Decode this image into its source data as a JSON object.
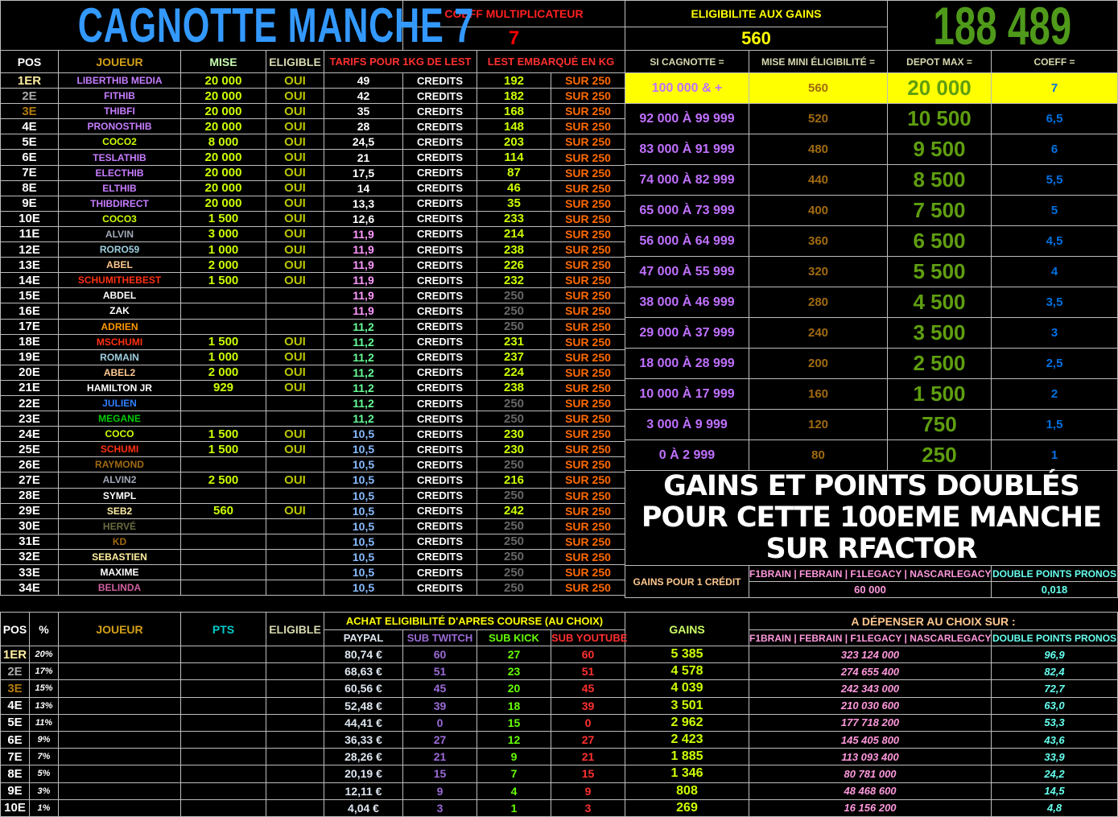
{
  "title": "CAGNOTTE MANCHE 7",
  "coeff": {
    "label": "COEFF MULTIPLICATEUR",
    "value": "7"
  },
  "eligibility": {
    "label": "ELIGIBILITE AUX GAINS",
    "value": "560"
  },
  "jackpot": "188 489",
  "colors": {
    "title": "#3399ff",
    "jackpot": "#4f9a1a",
    "highlight_row": "#ffff00",
    "border": "#bdbdbd",
    "background": "#000000"
  },
  "main_headers": [
    "POS",
    "JOUEUR",
    "MISE",
    "ELIGIBLE",
    "TARIFS POUR 1KG DE LEST",
    "LEST EMBARQUÉ EN KG"
  ],
  "credits_label": "CREDITS",
  "sur_label": "SUR 250",
  "players": [
    {
      "pos": "1ER",
      "pos_color": "#fff0a0",
      "name": "LIBERTHIB MEDIA",
      "color": "#c77dff",
      "mise": "20 000",
      "elig": "OUI",
      "tarif": "49",
      "tarif_color": "#ffffff",
      "lest": "192",
      "lest_color": "#ccff00"
    },
    {
      "pos": "2E",
      "pos_color": "#aaaaaa",
      "name": "FITHIB",
      "color": "#c77dff",
      "mise": "20 000",
      "elig": "OUI",
      "tarif": "42",
      "tarif_color": "#ffffff",
      "lest": "182",
      "lest_color": "#ccff00"
    },
    {
      "pos": "3E",
      "pos_color": "#b07a10",
      "name": "THIBFI",
      "color": "#c77dff",
      "mise": "20 000",
      "elig": "OUI",
      "tarif": "35",
      "tarif_color": "#ffffff",
      "lest": "168",
      "lest_color": "#ccff00"
    },
    {
      "pos": "4E",
      "pos_color": "#ffffff",
      "name": "PRONOSTHIB",
      "color": "#c77dff",
      "mise": "20 000",
      "elig": "OUI",
      "tarif": "28",
      "tarif_color": "#ffffff",
      "lest": "148",
      "lest_color": "#ccff00"
    },
    {
      "pos": "5E",
      "pos_color": "#ffffff",
      "name": "COCO2",
      "color": "#ccff00",
      "mise": "8 000",
      "elig": "OUI",
      "tarif": "24,5",
      "tarif_color": "#ffffff",
      "lest": "203",
      "lest_color": "#ccff00"
    },
    {
      "pos": "6E",
      "pos_color": "#ffffff",
      "name": "TESLATHIB",
      "color": "#c77dff",
      "mise": "20 000",
      "elig": "OUI",
      "tarif": "21",
      "tarif_color": "#ffffff",
      "lest": "114",
      "lest_color": "#ccff00"
    },
    {
      "pos": "7E",
      "pos_color": "#ffffff",
      "name": "ELECTHIB",
      "color": "#c77dff",
      "mise": "20 000",
      "elig": "OUI",
      "tarif": "17,5",
      "tarif_color": "#ffffff",
      "lest": "87",
      "lest_color": "#ccff00"
    },
    {
      "pos": "8E",
      "pos_color": "#ffffff",
      "name": "ELTHIB",
      "color": "#c77dff",
      "mise": "20 000",
      "elig": "OUI",
      "tarif": "14",
      "tarif_color": "#ffffff",
      "lest": "46",
      "lest_color": "#ccff00"
    },
    {
      "pos": "9E",
      "pos_color": "#ffffff",
      "name": "THIBDIRECT",
      "color": "#c77dff",
      "mise": "20 000",
      "elig": "OUI",
      "tarif": "13,3",
      "tarif_color": "#ffffff",
      "lest": "35",
      "lest_color": "#ccff00"
    },
    {
      "pos": "10E",
      "pos_color": "#ffffff",
      "name": "COCO3",
      "color": "#ccff00",
      "mise": "1 500",
      "elig": "OUI",
      "tarif": "12,6",
      "tarif_color": "#ffffff",
      "lest": "233",
      "lest_color": "#ccff00"
    },
    {
      "pos": "11E",
      "pos_color": "#ffffff",
      "name": "ALVIN",
      "color": "#a0a8b8",
      "mise": "3 000",
      "elig": "OUI",
      "tarif": "11,9",
      "tarif_color": "#ff99ff",
      "lest": "214",
      "lest_color": "#ccff00"
    },
    {
      "pos": "12E",
      "pos_color": "#ffffff",
      "name": "RORO59",
      "color": "#9ecfe0",
      "mise": "1 000",
      "elig": "OUI",
      "tarif": "11,9",
      "tarif_color": "#ff99ff",
      "lest": "238",
      "lest_color": "#ccff00"
    },
    {
      "pos": "13E",
      "pos_color": "#ffffff",
      "name": "ABEL",
      "color": "#ffc890",
      "mise": "2 000",
      "elig": "OUI",
      "tarif": "11,9",
      "tarif_color": "#ff99ff",
      "lest": "226",
      "lest_color": "#ccff00"
    },
    {
      "pos": "14E",
      "pos_color": "#ffffff",
      "name": "SCHUMITHEBEST",
      "color": "#ff3010",
      "mise": "1 500",
      "elig": "OUI",
      "tarif": "11,9",
      "tarif_color": "#ff99ff",
      "lest": "232",
      "lest_color": "#ccff00"
    },
    {
      "pos": "15E",
      "pos_color": "#ffffff",
      "name": "ABDEL",
      "color": "#ffffff",
      "mise": "",
      "elig": "",
      "tarif": "11,9",
      "tarif_color": "#ff99ff",
      "lest": "250",
      "lest_color": "#666666"
    },
    {
      "pos": "16E",
      "pos_color": "#ffffff",
      "name": "ZAK",
      "color": "#ffffff",
      "mise": "",
      "elig": "",
      "tarif": "11,9",
      "tarif_color": "#ff99ff",
      "lest": "250",
      "lest_color": "#666666"
    },
    {
      "pos": "17E",
      "pos_color": "#ffffff",
      "name": "ADRIEN",
      "color": "#ff9900",
      "mise": "",
      "elig": "",
      "tarif": "11,2",
      "tarif_color": "#66ff99",
      "lest": "250",
      "lest_color": "#666666"
    },
    {
      "pos": "18E",
      "pos_color": "#ffffff",
      "name": "MSCHUMI",
      "color": "#ff3010",
      "mise": "1 500",
      "elig": "OUI",
      "tarif": "11,2",
      "tarif_color": "#66ff99",
      "lest": "231",
      "lest_color": "#ccff00"
    },
    {
      "pos": "19E",
      "pos_color": "#ffffff",
      "name": "ROMAIN",
      "color": "#9ecfe0",
      "mise": "1 000",
      "elig": "OUI",
      "tarif": "11,2",
      "tarif_color": "#66ff99",
      "lest": "237",
      "lest_color": "#ccff00"
    },
    {
      "pos": "20E",
      "pos_color": "#ffffff",
      "name": "ABEL2",
      "color": "#ffc890",
      "mise": "2 000",
      "elig": "OUI",
      "tarif": "11,2",
      "tarif_color": "#66ff99",
      "lest": "224",
      "lest_color": "#ccff00"
    },
    {
      "pos": "21E",
      "pos_color": "#ffffff",
      "name": "HAMILTON JR",
      "color": "#ffffff",
      "mise": "929",
      "elig": "OUI",
      "tarif": "11,2",
      "tarif_color": "#66ff99",
      "lest": "238",
      "lest_color": "#ccff00"
    },
    {
      "pos": "22E",
      "pos_color": "#ffffff",
      "name": "JULIEN",
      "color": "#3080ff",
      "mise": "",
      "elig": "",
      "tarif": "11,2",
      "tarif_color": "#66ff99",
      "lest": "250",
      "lest_color": "#666666"
    },
    {
      "pos": "23E",
      "pos_color": "#ffffff",
      "name": "MEGANE",
      "color": "#00cc00",
      "mise": "",
      "elig": "",
      "tarif": "11,2",
      "tarif_color": "#66ff99",
      "lest": "250",
      "lest_color": "#666666"
    },
    {
      "pos": "24E",
      "pos_color": "#ffffff",
      "name": "COCO",
      "color": "#ccff00",
      "mise": "1 500",
      "elig": "OUI",
      "tarif": "10,5",
      "tarif_color": "#88bbff",
      "lest": "230",
      "lest_color": "#ccff00"
    },
    {
      "pos": "25E",
      "pos_color": "#ffffff",
      "name": "SCHUMI",
      "color": "#ff3010",
      "mise": "1 500",
      "elig": "OUI",
      "tarif": "10,5",
      "tarif_color": "#88bbff",
      "lest": "230",
      "lest_color": "#ccff00"
    },
    {
      "pos": "26E",
      "pos_color": "#ffffff",
      "name": "RAYMOND",
      "color": "#a06a10",
      "mise": "",
      "elig": "",
      "tarif": "10,5",
      "tarif_color": "#88bbff",
      "lest": "250",
      "lest_color": "#666666"
    },
    {
      "pos": "27E",
      "pos_color": "#ffffff",
      "name": "ALVIN2",
      "color": "#a0a8b8",
      "mise": "2 500",
      "elig": "OUI",
      "tarif": "10,5",
      "tarif_color": "#88bbff",
      "lest": "216",
      "lest_color": "#ccff00"
    },
    {
      "pos": "28E",
      "pos_color": "#ffffff",
      "name": "SYMPL",
      "color": "#ffffff",
      "mise": "",
      "elig": "",
      "tarif": "10,5",
      "tarif_color": "#88bbff",
      "lest": "250",
      "lest_color": "#666666"
    },
    {
      "pos": "29E",
      "pos_color": "#ffffff",
      "name": "SEB2",
      "color": "#fff0a0",
      "mise": "560",
      "elig": "OUI",
      "tarif": "10,5",
      "tarif_color": "#88bbff",
      "lest": "242",
      "lest_color": "#ccff00"
    },
    {
      "pos": "30E",
      "pos_color": "#ffffff",
      "name": "HERVÉ",
      "color": "#6a6a40",
      "mise": "",
      "elig": "",
      "tarif": "10,5",
      "tarif_color": "#88bbff",
      "lest": "250",
      "lest_color": "#666666"
    },
    {
      "pos": "31E",
      "pos_color": "#ffffff",
      "name": "KD",
      "color": "#a06a10",
      "mise": "",
      "elig": "",
      "tarif": "10,5",
      "tarif_color": "#88bbff",
      "lest": "250",
      "lest_color": "#666666"
    },
    {
      "pos": "32E",
      "pos_color": "#ffffff",
      "name": "SEBASTIEN",
      "color": "#fff0a0",
      "mise": "",
      "elig": "",
      "tarif": "10,5",
      "tarif_color": "#88bbff",
      "lest": "250",
      "lest_color": "#666666"
    },
    {
      "pos": "33E",
      "pos_color": "#ffffff",
      "name": "MAXIME",
      "color": "#ffffff",
      "mise": "",
      "elig": "",
      "tarif": "10,5",
      "tarif_color": "#88bbff",
      "lest": "250",
      "lest_color": "#666666"
    },
    {
      "pos": "34E",
      "pos_color": "#ffffff",
      "name": "BELINDA",
      "color": "#d060a0",
      "mise": "",
      "elig": "",
      "tarif": "10,5",
      "tarif_color": "#88bbff",
      "lest": "250",
      "lest_color": "#666666"
    }
  ],
  "scale_headers": [
    "SI CAGNOTTE =",
    "MISE MINI ÉLIGIBILITÉ =",
    "DEPOT MAX =",
    "COEFF ="
  ],
  "scale": [
    {
      "range": "100 000 & +",
      "mini": "560",
      "depot": "20 000",
      "coeff": "7",
      "active": true
    },
    {
      "range": "92 000 À 99 999",
      "mini": "520",
      "depot": "10 500",
      "coeff": "6,5"
    },
    {
      "range": "83 000 À 91 999",
      "mini": "480",
      "depot": "9 500",
      "coeff": "6"
    },
    {
      "range": "74 000 À 82 999",
      "mini": "440",
      "depot": "8 500",
      "coeff": "5,5"
    },
    {
      "range": "65 000 À 73 999",
      "mini": "400",
      "depot": "7 500",
      "coeff": "5"
    },
    {
      "range": "56 000 À 64 999",
      "mini": "360",
      "depot": "6 500",
      "coeff": "4,5"
    },
    {
      "range": "47 000 À 55 999",
      "mini": "320",
      "depot": "5 500",
      "coeff": "4"
    },
    {
      "range": "38 000 À 46 999",
      "mini": "280",
      "depot": "4 500",
      "coeff": "3,5"
    },
    {
      "range": "29 000 À 37 999",
      "mini": "240",
      "depot": "3 500",
      "coeff": "3"
    },
    {
      "range": "18 000 À 28 999",
      "mini": "200",
      "depot": "2 500",
      "coeff": "2,5"
    },
    {
      "range": "10 000 À 17 999",
      "mini": "160",
      "depot": "1 500",
      "coeff": "2"
    },
    {
      "range": "3 000 À 9 999",
      "mini": "120",
      "depot": "750",
      "coeff": "1,5"
    },
    {
      "range": "0 À 2 999",
      "mini": "80",
      "depot": "250",
      "coeff": "1"
    }
  ],
  "banner": [
    "GAINS ET POINTS DOUBLÉS",
    "POUR CETTE 100EME MANCHE",
    "SUR RFACTOR"
  ],
  "credit_gain": {
    "label": "GAINS POUR 1 CRÉDIT",
    "games_label": "F1BRAIN | FEBRAIN | F1LEGACY | NASCARLEGACY",
    "games_value": "60 000",
    "pronos_label": "DOUBLE POINTS PRONOS",
    "pronos_value": "0,018"
  },
  "bottom": {
    "headers": {
      "pos": "POS",
      "pct": "%",
      "joueur": "JOUEUR",
      "pts": "PTS",
      "eligible": "ELIGIBLE",
      "achat": "ACHAT ELIGIBILITÉ D'APRES COURSE (AU CHOIX)",
      "paypal": "PAYPAL",
      "twitch": "SUB TWITCH",
      "kick": "SUB KICK",
      "youtube": "SUB YOUTUBE",
      "gains": "GAINS",
      "depenser": "A DÉPENSER AU CHOIX SUR :",
      "games": "F1BRAIN | FEBRAIN | F1LEGACY | NASCARLEGACY",
      "pronos": "DOUBLE POINTS PRONOS"
    },
    "rows": [
      {
        "pos": "1ER",
        "pos_color": "#fff0a0",
        "pct": "20%",
        "paypal": "80,74 €",
        "twitch": "60",
        "kick": "27",
        "youtube": "60",
        "gains": "5 385",
        "games": "323 124 000",
        "pronos": "96,9"
      },
      {
        "pos": "2E",
        "pos_color": "#aaaaaa",
        "pct": "17%",
        "paypal": "68,63 €",
        "twitch": "51",
        "kick": "23",
        "youtube": "51",
        "gains": "4 578",
        "games": "274 655 400",
        "pronos": "82,4"
      },
      {
        "pos": "3E",
        "pos_color": "#b07a10",
        "pct": "15%",
        "paypal": "60,56 €",
        "twitch": "45",
        "kick": "20",
        "youtube": "45",
        "gains": "4 039",
        "games": "242 343 000",
        "pronos": "72,7"
      },
      {
        "pos": "4E",
        "pos_color": "#ffffff",
        "pct": "13%",
        "paypal": "52,48 €",
        "twitch": "39",
        "kick": "18",
        "youtube": "39",
        "gains": "3 501",
        "games": "210 030 600",
        "pronos": "63,0"
      },
      {
        "pos": "5E",
        "pos_color": "#ffffff",
        "pct": "11%",
        "paypal": "44,41 €",
        "twitch": "0",
        "kick": "15",
        "youtube": "0",
        "gains": "2 962",
        "games": "177 718 200",
        "pronos": "53,3"
      },
      {
        "pos": "6E",
        "pos_color": "#ffffff",
        "pct": "9%",
        "paypal": "36,33 €",
        "twitch": "27",
        "kick": "12",
        "youtube": "27",
        "gains": "2 423",
        "games": "145 405 800",
        "pronos": "43,6"
      },
      {
        "pos": "7E",
        "pos_color": "#ffffff",
        "pct": "7%",
        "paypal": "28,26 €",
        "twitch": "21",
        "kick": "9",
        "youtube": "21",
        "gains": "1 885",
        "games": "113 093 400",
        "pronos": "33,9"
      },
      {
        "pos": "8E",
        "pos_color": "#ffffff",
        "pct": "5%",
        "paypal": "20,19 €",
        "twitch": "15",
        "kick": "7",
        "youtube": "15",
        "gains": "1 346",
        "games": "80 781 000",
        "pronos": "24,2"
      },
      {
        "pos": "9E",
        "pos_color": "#ffffff",
        "pct": "3%",
        "paypal": "12,11 €",
        "twitch": "9",
        "kick": "4",
        "youtube": "9",
        "gains": "808",
        "games": "48 468 600",
        "pronos": "14,5"
      },
      {
        "pos": "10E",
        "pos_color": "#ffffff",
        "pct": "1%",
        "paypal": "4,04 €",
        "twitch": "3",
        "kick": "1",
        "youtube": "3",
        "gains": "269",
        "games": "16 156 200",
        "pronos": "4,8"
      }
    ]
  }
}
